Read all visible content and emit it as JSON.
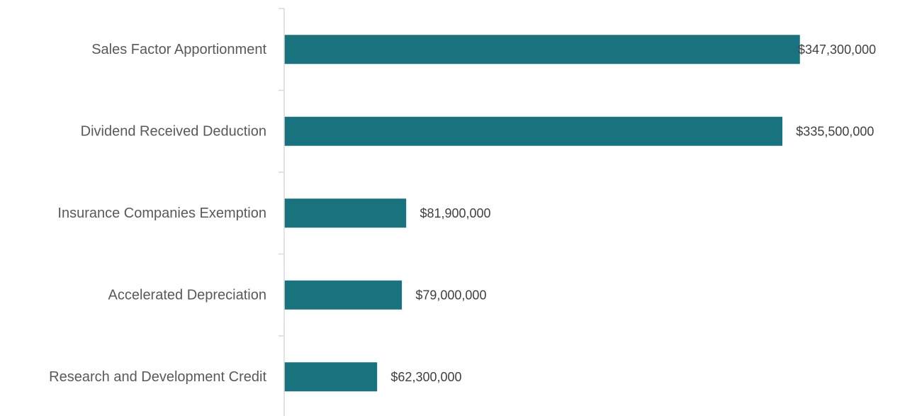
{
  "chart_data": {
    "type": "bar",
    "orientation": "horizontal",
    "title": "",
    "xlabel": "",
    "ylabel": "",
    "categories": [
      "Sales Factor Apportionment",
      "Dividend Received Deduction",
      "Insurance Companies Exemption",
      "Accelerated Depreciation",
      "Research and Development Credit"
    ],
    "values": [
      347300000,
      335500000,
      81900000,
      79000000,
      62300000
    ],
    "value_labels": [
      "$347,300,000",
      "$335,500,000",
      "$81,900,000",
      "$79,000,000",
      "$62,300,000"
    ],
    "xlim": [
      0,
      347300000
    ],
    "bar_color": "#18737F",
    "axis_color": "#D9D9D9",
    "grid": false,
    "legend": "none"
  }
}
